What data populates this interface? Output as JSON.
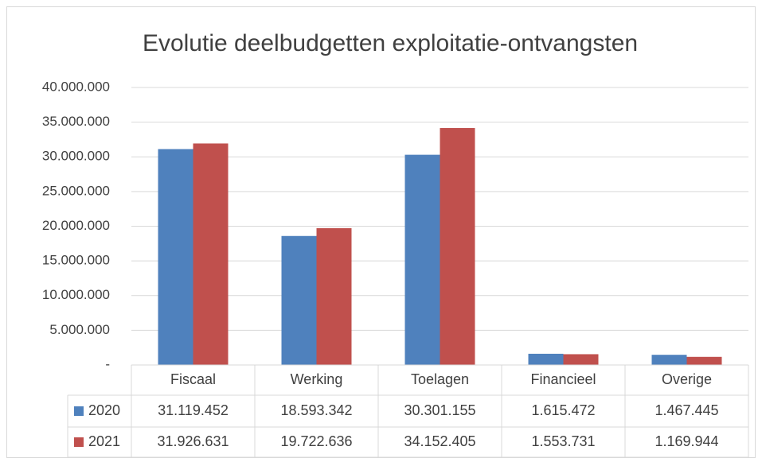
{
  "chart_data": {
    "type": "bar",
    "title": "Evolutie deelbudgetten exploitatie-ontvangsten",
    "categories": [
      "Fiscaal",
      "Werking",
      "Toelagen",
      "Financieel",
      "Overige"
    ],
    "series": [
      {
        "name": "2020",
        "color": "#4f81bd",
        "values": [
          31119452,
          18593342,
          30301155,
          1615472,
          1467445
        ],
        "value_labels": [
          "31.119.452",
          "18.593.342",
          "30.301.155",
          "1.615.472",
          "1.467.445"
        ]
      },
      {
        "name": "2021",
        "color": "#c0504d",
        "values": [
          31926631,
          19722636,
          34152405,
          1553731,
          1169944
        ],
        "value_labels": [
          "31.926.631",
          "19.722.636",
          "34.152.405",
          "1.553.731",
          "1.169.944"
        ]
      }
    ],
    "ylim": [
      0,
      40000000
    ],
    "yticks": [
      {
        "value": 0,
        "label": "-"
      },
      {
        "value": 5000000,
        "label": "5.000.000"
      },
      {
        "value": 10000000,
        "label": "10.000.000"
      },
      {
        "value": 15000000,
        "label": "15.000.000"
      },
      {
        "value": 20000000,
        "label": "20.000.000"
      },
      {
        "value": 25000000,
        "label": "25.000.000"
      },
      {
        "value": 30000000,
        "label": "30.000.000"
      },
      {
        "value": 35000000,
        "label": "35.000.000"
      },
      {
        "value": 40000000,
        "label": "40.000.000"
      }
    ],
    "grid": true
  }
}
